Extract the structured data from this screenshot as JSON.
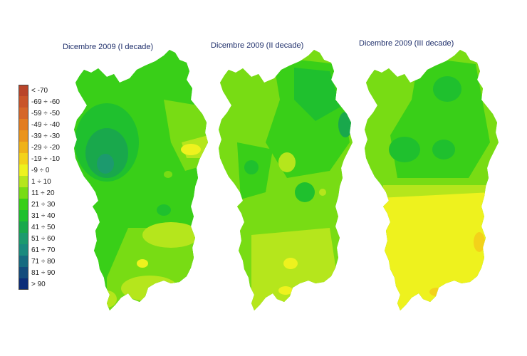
{
  "maps": [
    {
      "title": "Dicembre 2009 (I decade)"
    },
    {
      "title": "Dicembre 2009 (II decade)"
    },
    {
      "title": "Dicembre 2009 (III decade)"
    }
  ],
  "legend": [
    {
      "label": "< -70",
      "color": "#b9452a"
    },
    {
      "label": "-69 ÷ -60",
      "color": "#c9552a"
    },
    {
      "label": "-59 ÷ -50",
      "color": "#d5672a"
    },
    {
      "label": "-49 ÷ -40",
      "color": "#e27d22"
    },
    {
      "label": "-39 ÷ -30",
      "color": "#ea941c"
    },
    {
      "label": "-29 ÷ -20",
      "color": "#efb218"
    },
    {
      "label": "-19 ÷ -10",
      "color": "#f3d21a"
    },
    {
      "label": "-9 ÷ 0",
      "color": "#eef21e"
    },
    {
      "label": "1 ÷ 10",
      "color": "#b5e61c"
    },
    {
      "label": "11 ÷ 20",
      "color": "#78dc14"
    },
    {
      "label": "21 ÷ 30",
      "color": "#39cf18"
    },
    {
      "label": "31 ÷ 40",
      "color": "#1fc02e"
    },
    {
      "label": "41 ÷ 50",
      "color": "#19a84c"
    },
    {
      "label": "51 ÷ 60",
      "color": "#1c9a6e"
    },
    {
      "label": "61 ÷ 70",
      "color": "#1a8a7e"
    },
    {
      "label": "71 ÷ 80",
      "color": "#166a80"
    },
    {
      "label": "81 ÷ 90",
      "color": "#134b7c"
    },
    {
      "label": "> 90",
      "color": "#0c2d78"
    }
  ]
}
